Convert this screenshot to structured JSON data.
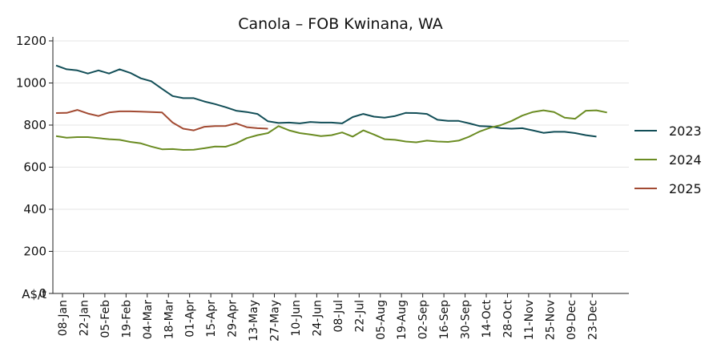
{
  "chart_data": {
    "type": "line",
    "title": "Canola – FOB Kwinana, WA",
    "ylabel": "A$/t",
    "xlabel": "",
    "ylim": [
      0,
      1200
    ],
    "yticks": [
      0,
      200,
      400,
      600,
      800,
      1000,
      1200
    ],
    "grid": "horizontal",
    "legend_position": "right",
    "x_tick_labels": [
      "08-Jan",
      "22-Jan",
      "05-Feb",
      "19-Feb",
      "04-Mar",
      "18-Mar",
      "01-Apr",
      "15-Apr",
      "29-Apr",
      "13-May",
      "27-May",
      "10-Jun",
      "24-Jun",
      "08-Jul",
      "22-Jul",
      "05-Aug",
      "19-Aug",
      "02-Sep",
      "16-Sep",
      "30-Sep",
      "14-Oct",
      "28-Oct",
      "11-Nov",
      "25-Nov",
      "09-Dec",
      "23-Dec"
    ],
    "series": [
      {
        "name": "2023",
        "color": "#124e57",
        "values": [
          1083,
          1065,
          1060,
          1045,
          1060,
          1045,
          1065,
          1048,
          1022,
          1008,
          972,
          938,
          928,
          928,
          912,
          900,
          885,
          868,
          862,
          853,
          818,
          810,
          812,
          808,
          815,
          812,
          812,
          808,
          838,
          853,
          840,
          835,
          843,
          858,
          857,
          853,
          825,
          820,
          820,
          808,
          795,
          793,
          785,
          783,
          785,
          775,
          763,
          768,
          768,
          762,
          752,
          745
        ]
      },
      {
        "name": "2024",
        "color": "#6b8c23",
        "values": [
          748,
          740,
          743,
          743,
          738,
          733,
          730,
          720,
          713,
          698,
          685,
          686,
          682,
          683,
          690,
          698,
          697,
          713,
          738,
          752,
          762,
          795,
          775,
          762,
          755,
          748,
          752,
          765,
          745,
          775,
          755,
          733,
          730,
          722,
          718,
          726,
          722,
          720,
          726,
          745,
          770,
          788,
          800,
          820,
          845,
          862,
          870,
          862,
          835,
          830,
          868,
          870,
          860
        ]
      },
      {
        "name": "2025",
        "color": "#a24a32",
        "values": [
          857,
          858,
          872,
          855,
          843,
          860,
          865,
          865,
          864,
          862,
          860,
          812,
          783,
          775,
          792,
          795,
          796,
          808,
          790,
          785,
          783
        ]
      }
    ]
  }
}
